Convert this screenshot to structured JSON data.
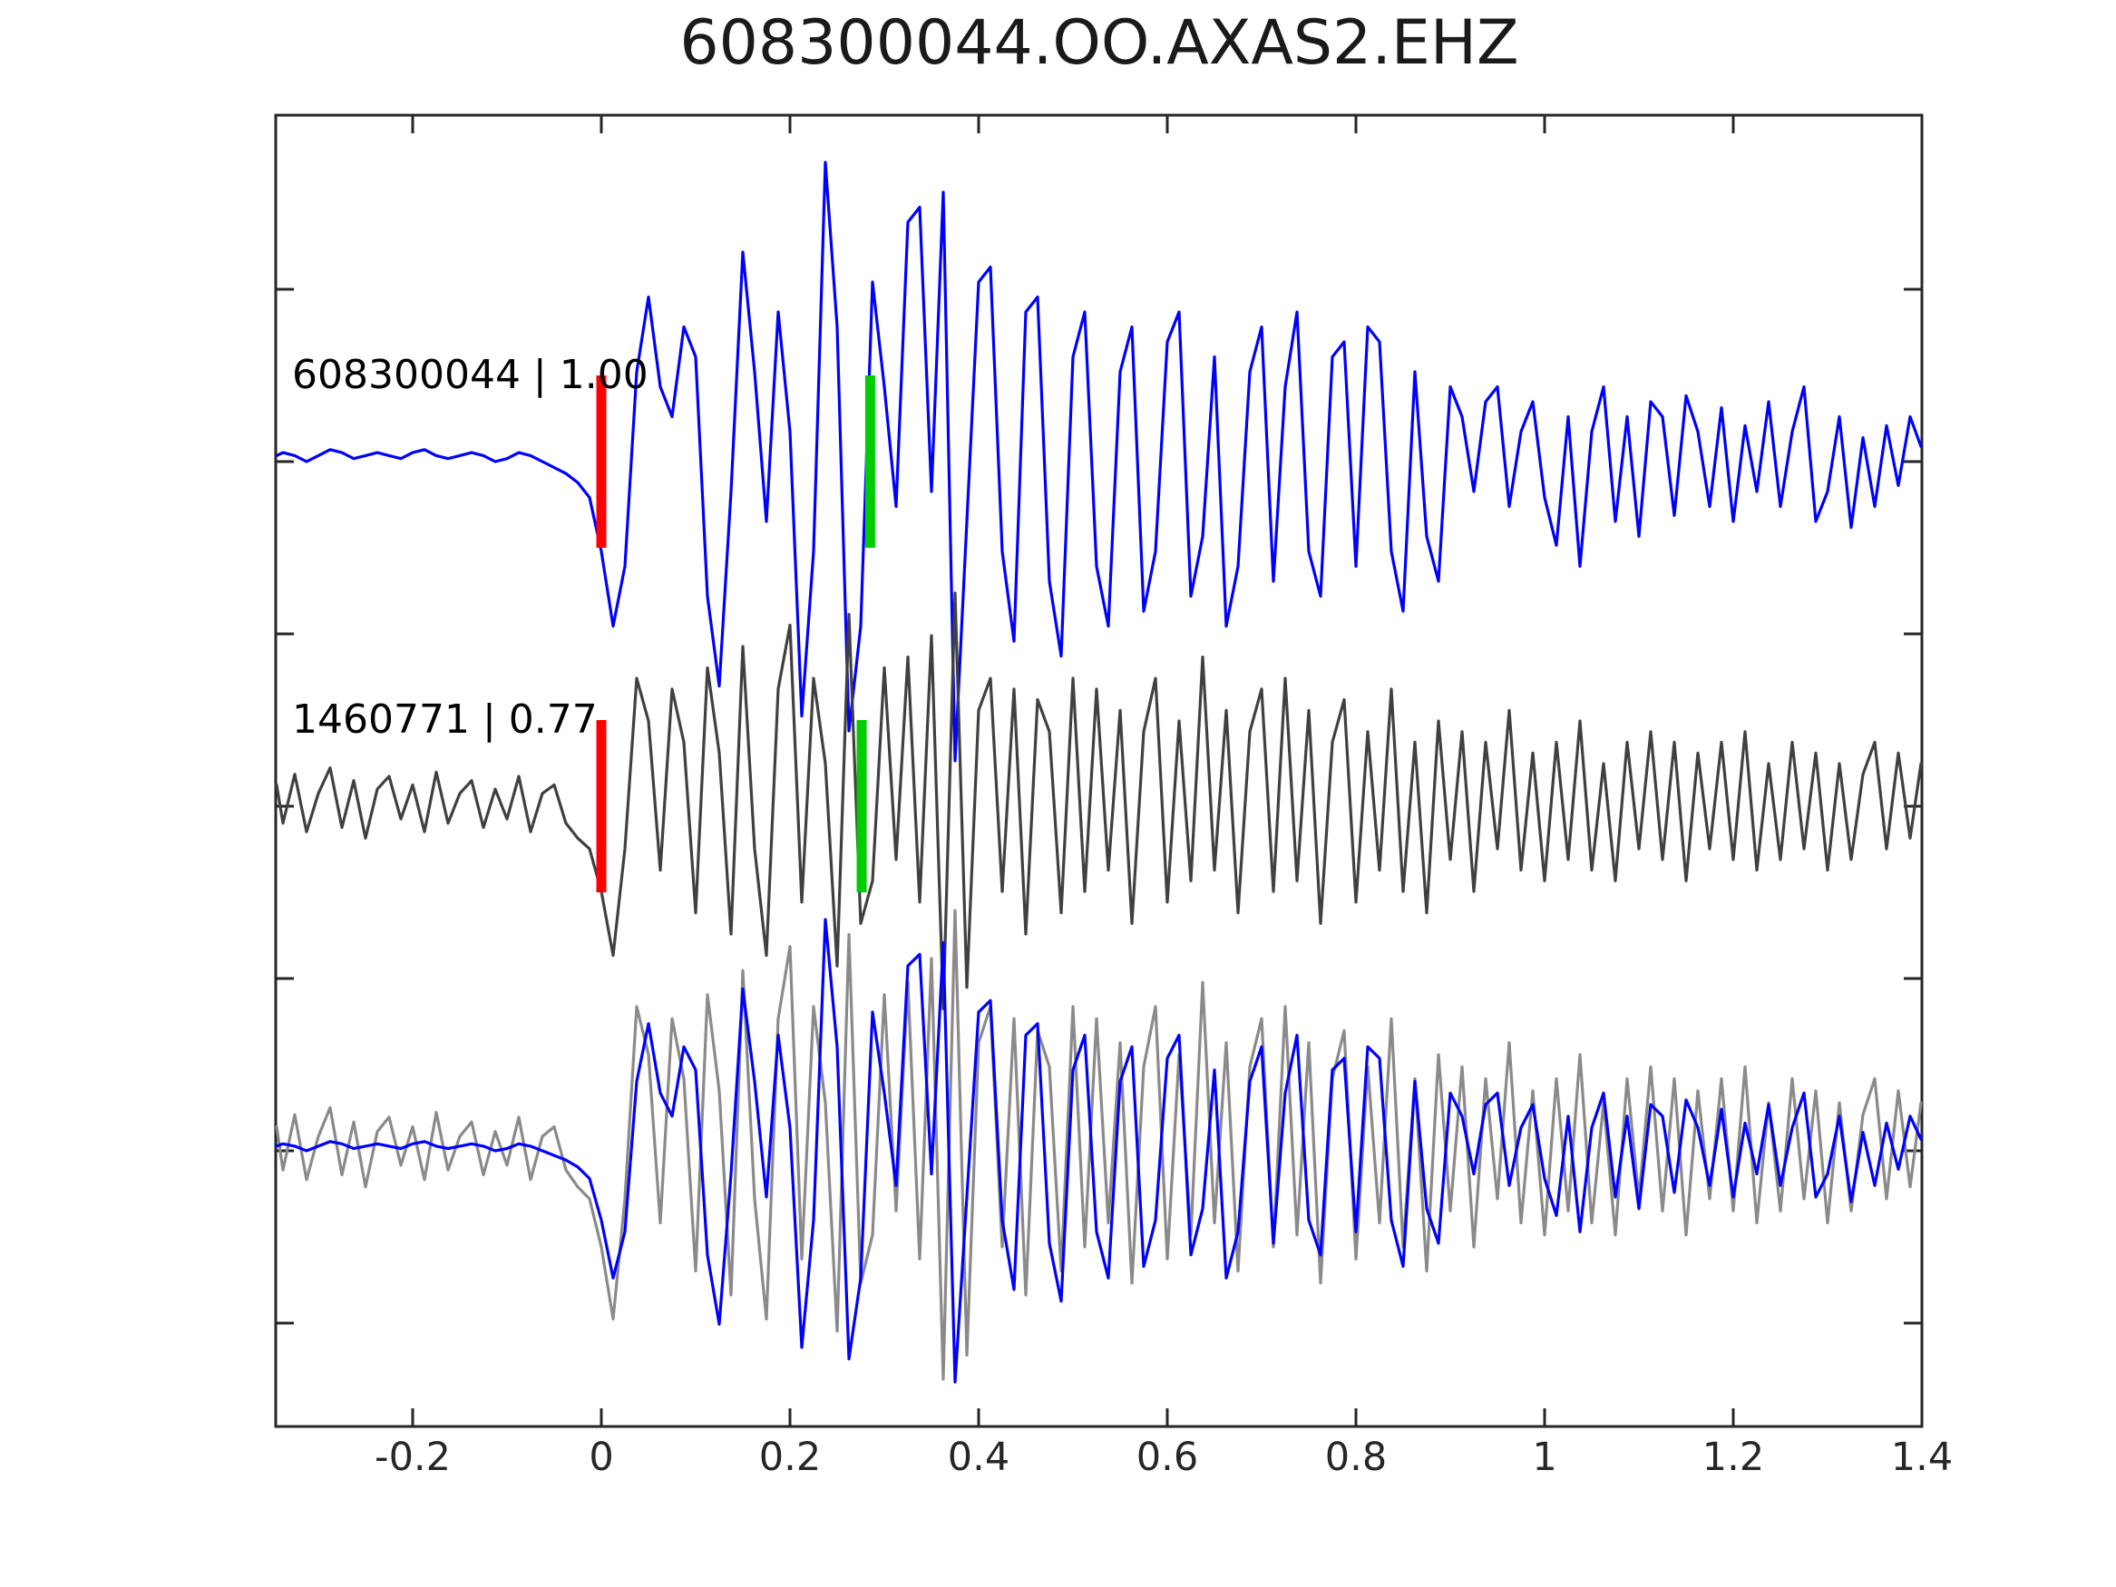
{
  "title": "608300044.OO.AXAS2.EHZ",
  "chart_data": {
    "type": "line",
    "title": "608300044.OO.AXAS2.EHZ",
    "xlabel": "",
    "ylabel": "",
    "xlim": [
      -0.345,
      1.4
    ],
    "grid": false,
    "legend_position": "none",
    "axis_color": "#262626",
    "background_color": "#ffffff",
    "x_ticks": [
      {
        "value": -0.2,
        "label": "-0.2"
      },
      {
        "value": 0,
        "label": "0"
      },
      {
        "value": 0.2,
        "label": "0.2"
      },
      {
        "value": 0.4,
        "label": "0.4"
      },
      {
        "value": 0.6,
        "label": "0.6"
      },
      {
        "value": 0.8,
        "label": "0.8"
      },
      {
        "value": 1,
        "label": "1"
      },
      {
        "value": 1.2,
        "label": "1.2"
      },
      {
        "value": 1.4,
        "label": "1.4"
      }
    ],
    "y_ticks_unlabeled_count": 7,
    "x_start": -0.35,
    "x_step": 0.0125,
    "series": [
      {
        "id": "template-trace",
        "label": "608300044 | 1.00",
        "color": "#0000ff",
        "row": 1,
        "markers": [
          {
            "x": 0.0,
            "color": "#ff0000",
            "name": "pick-marker-red"
          },
          {
            "x": 0.285,
            "color": "#00cc00",
            "name": "pick-marker-green"
          }
        ],
        "values": [
          0.02,
          0.03,
          0.02,
          0.0,
          0.02,
          0.04,
          0.03,
          0.01,
          0.02,
          0.03,
          0.02,
          0.01,
          0.03,
          0.04,
          0.02,
          0.01,
          0.02,
          0.03,
          0.02,
          0.0,
          0.01,
          0.03,
          0.02,
          0.0,
          -0.02,
          -0.04,
          -0.07,
          -0.12,
          -0.3,
          -0.55,
          -0.35,
          0.3,
          0.55,
          0.25,
          0.15,
          0.45,
          0.35,
          -0.45,
          -0.75,
          -0.1,
          0.7,
          0.3,
          -0.2,
          0.5,
          0.1,
          -0.85,
          -0.3,
          1.0,
          0.45,
          -0.9,
          -0.55,
          0.6,
          0.25,
          -0.15,
          0.8,
          0.85,
          -0.1,
          0.9,
          -1.0,
          -0.2,
          0.6,
          0.65,
          -0.3,
          -0.6,
          0.5,
          0.55,
          -0.4,
          -0.65,
          0.35,
          0.5,
          -0.35,
          -0.55,
          0.3,
          0.45,
          -0.5,
          -0.3,
          0.4,
          0.5,
          -0.45,
          -0.25,
          0.35,
          -0.55,
          -0.35,
          0.3,
          0.45,
          -0.4,
          0.25,
          0.5,
          -0.3,
          -0.45,
          0.35,
          0.4,
          -0.35,
          0.45,
          0.4,
          -0.3,
          -0.5,
          0.3,
          -0.25,
          -0.4,
          0.25,
          0.15,
          -0.1,
          0.2,
          0.25,
          -0.15,
          0.1,
          0.2,
          -0.12,
          -0.28,
          0.15,
          -0.35,
          0.1,
          0.25,
          -0.2,
          0.15,
          -0.25,
          0.2,
          0.15,
          -0.18,
          0.22,
          0.1,
          -0.15,
          0.18,
          -0.2,
          0.12,
          -0.1,
          0.2,
          -0.15,
          0.1,
          0.25,
          -0.2,
          -0.1,
          0.15,
          -0.22,
          0.08,
          -0.15,
          0.12,
          -0.08,
          0.15,
          0.05
        ]
      },
      {
        "id": "detection-trace",
        "label": "1460771 | 0.77",
        "color": "#404040",
        "row": 2,
        "markers": [
          {
            "x": 0.0,
            "color": "#ff0000",
            "name": "pick-marker-red"
          },
          {
            "x": 0.276,
            "color": "#00cc00",
            "name": "pick-marker-green"
          }
        ],
        "values": [
          0.1,
          -0.08,
          0.15,
          -0.12,
          0.06,
          0.18,
          -0.1,
          0.12,
          -0.15,
          0.08,
          0.14,
          -0.06,
          0.1,
          -0.12,
          0.16,
          -0.08,
          0.06,
          0.12,
          -0.1,
          0.08,
          -0.06,
          0.14,
          -0.12,
          0.06,
          0.1,
          -0.08,
          -0.15,
          -0.2,
          -0.4,
          -0.7,
          -0.2,
          0.6,
          0.4,
          -0.3,
          0.55,
          0.3,
          -0.5,
          0.65,
          0.25,
          -0.6,
          0.75,
          -0.2,
          -0.7,
          0.55,
          0.85,
          -0.45,
          0.6,
          0.2,
          -0.75,
          0.9,
          -0.55,
          -0.35,
          0.65,
          -0.25,
          0.7,
          -0.45,
          0.8,
          -0.95,
          1.0,
          -0.85,
          0.45,
          0.6,
          -0.4,
          0.55,
          -0.6,
          0.5,
          0.35,
          -0.5,
          0.6,
          -0.4,
          0.55,
          -0.3,
          0.45,
          -0.55,
          0.35,
          0.6,
          -0.45,
          0.4,
          -0.35,
          0.7,
          -0.3,
          0.45,
          -0.5,
          0.35,
          0.55,
          -0.4,
          0.6,
          -0.35,
          0.45,
          -0.55,
          0.3,
          0.5,
          -0.45,
          0.35,
          -0.3,
          0.55,
          -0.4,
          0.3,
          -0.5,
          0.4,
          -0.25,
          0.35,
          -0.4,
          0.3,
          -0.2,
          0.45,
          -0.3,
          0.25,
          -0.35,
          0.3,
          -0.25,
          0.4,
          -0.3,
          0.2,
          -0.35,
          0.3,
          -0.2,
          0.35,
          -0.25,
          0.3,
          -0.35,
          0.25,
          -0.2,
          0.3,
          -0.25,
          0.35,
          -0.3,
          0.2,
          -0.25,
          0.3,
          -0.2,
          0.25,
          -0.3,
          0.2,
          -0.25,
          0.15,
          0.3,
          -0.2,
          0.25,
          -0.15,
          0.2
        ]
      },
      {
        "id": "overlay-detection-trace",
        "label": "",
        "color": "#8a8a8a",
        "row": 3,
        "source_index": 1,
        "markers": []
      },
      {
        "id": "overlay-template-trace",
        "label": "",
        "color": "#0000ff",
        "row": 3,
        "source_index": 0,
        "markers": []
      }
    ]
  }
}
